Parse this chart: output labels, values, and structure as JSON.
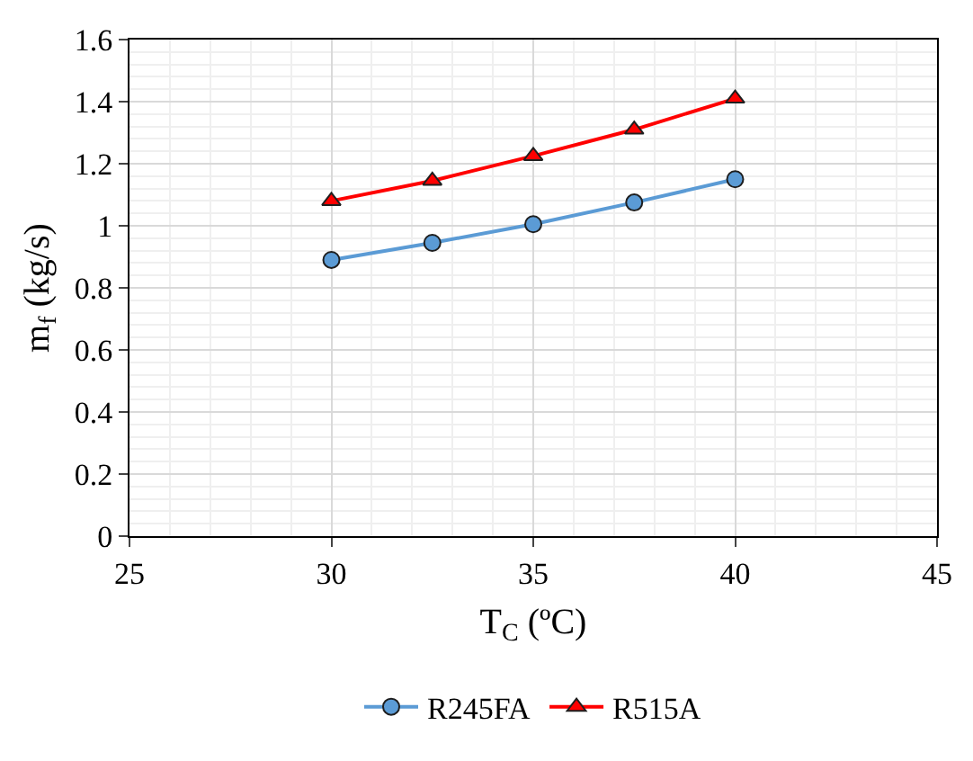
{
  "chart_data": {
    "type": "line",
    "xlabel": "T$_{C}$ (ºC)",
    "ylabel": "m$_{f}$ (kg/s)",
    "x": [
      30,
      32.5,
      35,
      37.5,
      40
    ],
    "series": [
      {
        "name": "R245FA",
        "color": "#5b9bd5",
        "marker": "circle",
        "values": [
          0.89,
          0.945,
          1.005,
          1.075,
          1.15
        ]
      },
      {
        "name": "R515A",
        "color": "#ff0000",
        "marker": "triangle",
        "values": [
          1.08,
          1.145,
          1.225,
          1.31,
          1.41
        ]
      }
    ],
    "xlim": [
      25,
      45
    ],
    "xticks": [
      25,
      30,
      35,
      40,
      45
    ],
    "ylim": [
      0,
      1.6
    ],
    "yticks": [
      0,
      0.2,
      0.4,
      0.6,
      0.8,
      1,
      1.2,
      1.4,
      1.6
    ],
    "grid": true,
    "legend": "bottom",
    "line_style": "solid"
  }
}
